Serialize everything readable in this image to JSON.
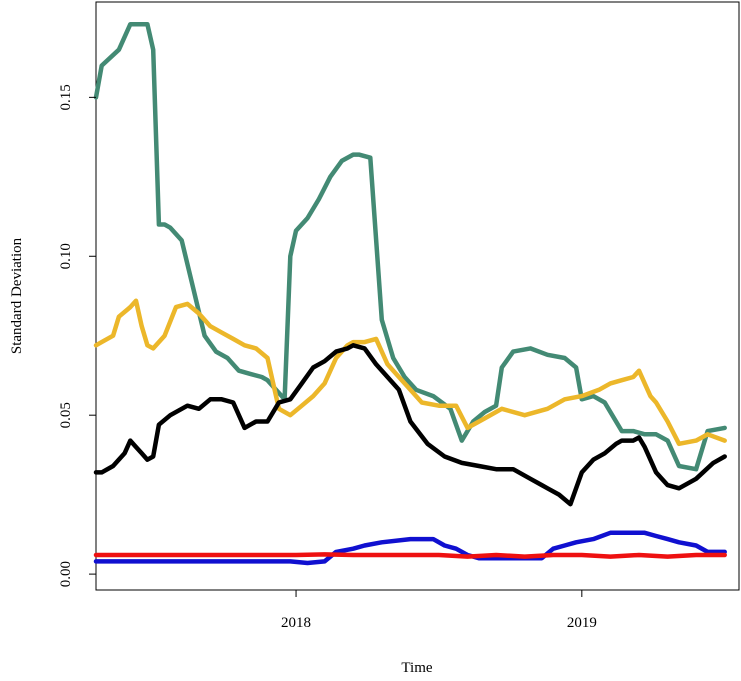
{
  "chart_data": {
    "type": "line",
    "xlabel": "Time",
    "ylabel": "Standard Deviation",
    "xlim": [
      2017.3,
      2019.55
    ],
    "ylim": [
      -0.005,
      0.18
    ],
    "xticks": [
      {
        "value": 2018,
        "label": "2018"
      },
      {
        "value": 2019,
        "label": "2019"
      }
    ],
    "yticks": [
      {
        "value": 0.0,
        "label": "0.00"
      },
      {
        "value": 0.05,
        "label": "0.05"
      },
      {
        "value": 0.1,
        "label": "0.10"
      },
      {
        "value": 0.15,
        "label": "0.15"
      }
    ],
    "grid": false,
    "series": [
      {
        "color": "#438A74",
        "x": [
          2017.3,
          2017.32,
          2017.38,
          2017.42,
          2017.48,
          2017.5,
          2017.52,
          2017.54,
          2017.56,
          2017.6,
          2017.64,
          2017.68,
          2017.72,
          2017.76,
          2017.8,
          2017.84,
          2017.88,
          2017.9,
          2017.93,
          2017.96,
          2017.98,
          2018.0,
          2018.04,
          2018.08,
          2018.12,
          2018.16,
          2018.2,
          2018.22,
          2018.26,
          2018.3,
          2018.34,
          2018.38,
          2018.42,
          2018.48,
          2018.54,
          2018.56,
          2018.58,
          2018.62,
          2018.66,
          2018.7,
          2018.72,
          2018.76,
          2018.82,
          2018.88,
          2018.94,
          2018.98,
          2019.0,
          2019.04,
          2019.08,
          2019.14,
          2019.18,
          2019.22,
          2019.26,
          2019.3,
          2019.34,
          2019.4,
          2019.44,
          2019.5
        ],
        "values": [
          0.15,
          0.16,
          0.165,
          0.173,
          0.173,
          0.165,
          0.11,
          0.11,
          0.109,
          0.105,
          0.09,
          0.075,
          0.07,
          0.068,
          0.064,
          0.063,
          0.062,
          0.061,
          0.058,
          0.055,
          0.1,
          0.108,
          0.112,
          0.118,
          0.125,
          0.13,
          0.132,
          0.132,
          0.131,
          0.08,
          0.068,
          0.062,
          0.058,
          0.056,
          0.052,
          0.047,
          0.042,
          0.048,
          0.051,
          0.053,
          0.065,
          0.07,
          0.071,
          0.069,
          0.068,
          0.065,
          0.055,
          0.056,
          0.054,
          0.045,
          0.045,
          0.044,
          0.044,
          0.042,
          0.034,
          0.033,
          0.045,
          0.046
        ]
      },
      {
        "color": "#ECB72A",
        "x": [
          2017.3,
          2017.32,
          2017.36,
          2017.38,
          2017.42,
          2017.44,
          2017.46,
          2017.48,
          2017.5,
          2017.54,
          2017.58,
          2017.62,
          2017.66,
          2017.7,
          2017.74,
          2017.78,
          2017.82,
          2017.86,
          2017.9,
          2017.94,
          2017.98,
          2018.02,
          2018.06,
          2018.1,
          2018.14,
          2018.18,
          2018.2,
          2018.24,
          2018.28,
          2018.32,
          2018.36,
          2018.4,
          2018.44,
          2018.5,
          2018.56,
          2018.6,
          2018.66,
          2018.72,
          2018.8,
          2018.88,
          2018.94,
          2019.0,
          2019.06,
          2019.1,
          2019.14,
          2019.18,
          2019.2,
          2019.22,
          2019.24,
          2019.26,
          2019.3,
          2019.34,
          2019.4,
          2019.44,
          2019.5
        ],
        "values": [
          0.072,
          0.073,
          0.075,
          0.081,
          0.084,
          0.086,
          0.078,
          0.072,
          0.071,
          0.075,
          0.084,
          0.085,
          0.082,
          0.078,
          0.076,
          0.074,
          0.072,
          0.071,
          0.068,
          0.052,
          0.05,
          0.053,
          0.056,
          0.06,
          0.068,
          0.072,
          0.073,
          0.073,
          0.074,
          0.066,
          0.062,
          0.058,
          0.054,
          0.053,
          0.053,
          0.046,
          0.049,
          0.052,
          0.05,
          0.052,
          0.055,
          0.056,
          0.058,
          0.06,
          0.061,
          0.062,
          0.064,
          0.06,
          0.056,
          0.054,
          0.048,
          0.041,
          0.042,
          0.044,
          0.042
        ]
      },
      {
        "color": "#000000",
        "x": [
          2017.3,
          2017.32,
          2017.36,
          2017.4,
          2017.42,
          2017.44,
          2017.46,
          2017.48,
          2017.5,
          2017.52,
          2017.56,
          2017.62,
          2017.66,
          2017.7,
          2017.74,
          2017.78,
          2017.82,
          2017.84,
          2017.86,
          2017.9,
          2017.94,
          2017.98,
          2018.02,
          2018.06,
          2018.1,
          2018.14,
          2018.18,
          2018.2,
          2018.24,
          2018.28,
          2018.32,
          2018.36,
          2018.4,
          2018.46,
          2018.52,
          2018.58,
          2018.64,
          2018.7,
          2018.76,
          2018.82,
          2018.86,
          2018.88,
          2018.92,
          2018.96,
          2019.0,
          2019.04,
          2019.08,
          2019.12,
          2019.14,
          2019.16,
          2019.18,
          2019.2,
          2019.22,
          2019.24,
          2019.26,
          2019.28,
          2019.3,
          2019.34,
          2019.4,
          2019.46,
          2019.5
        ],
        "values": [
          0.032,
          0.032,
          0.034,
          0.038,
          0.042,
          0.04,
          0.038,
          0.036,
          0.037,
          0.047,
          0.05,
          0.053,
          0.052,
          0.055,
          0.055,
          0.054,
          0.046,
          0.047,
          0.048,
          0.048,
          0.054,
          0.055,
          0.06,
          0.065,
          0.067,
          0.07,
          0.071,
          0.072,
          0.071,
          0.066,
          0.062,
          0.058,
          0.048,
          0.041,
          0.037,
          0.035,
          0.034,
          0.033,
          0.033,
          0.03,
          0.028,
          0.027,
          0.025,
          0.022,
          0.032,
          0.036,
          0.038,
          0.041,
          0.042,
          0.042,
          0.042,
          0.043,
          0.04,
          0.036,
          0.032,
          0.03,
          0.028,
          0.027,
          0.03,
          0.035,
          0.037
        ]
      },
      {
        "color": "#1010D0",
        "x": [
          2017.3,
          2017.4,
          2017.5,
          2017.6,
          2017.7,
          2017.8,
          2017.9,
          2017.98,
          2018.04,
          2018.1,
          2018.14,
          2018.2,
          2018.24,
          2018.3,
          2018.4,
          2018.48,
          2018.52,
          2018.56,
          2018.6,
          2018.64,
          2018.7,
          2018.76,
          2018.82,
          2018.86,
          2018.9,
          2018.94,
          2018.98,
          2019.04,
          2019.1,
          2019.16,
          2019.22,
          2019.26,
          2019.3,
          2019.34,
          2019.4,
          2019.44,
          2019.5
        ],
        "values": [
          0.004,
          0.004,
          0.004,
          0.004,
          0.004,
          0.004,
          0.004,
          0.004,
          0.0035,
          0.004,
          0.007,
          0.008,
          0.009,
          0.01,
          0.011,
          0.011,
          0.009,
          0.008,
          0.006,
          0.005,
          0.005,
          0.005,
          0.005,
          0.005,
          0.008,
          0.009,
          0.01,
          0.011,
          0.013,
          0.013,
          0.013,
          0.012,
          0.011,
          0.01,
          0.009,
          0.007,
          0.007
        ]
      },
      {
        "color": "#EE1111",
        "x": [
          2017.3,
          2017.4,
          2017.5,
          2017.6,
          2017.7,
          2017.8,
          2017.9,
          2018.0,
          2018.1,
          2018.2,
          2018.3,
          2018.4,
          2018.5,
          2018.6,
          2018.7,
          2018.8,
          2018.9,
          2019.0,
          2019.1,
          2019.2,
          2019.3,
          2019.4,
          2019.5
        ],
        "values": [
          0.006,
          0.006,
          0.006,
          0.006,
          0.006,
          0.006,
          0.006,
          0.006,
          0.0062,
          0.006,
          0.006,
          0.006,
          0.006,
          0.0055,
          0.006,
          0.0055,
          0.006,
          0.006,
          0.0055,
          0.006,
          0.0055,
          0.006,
          0.006
        ]
      }
    ]
  }
}
